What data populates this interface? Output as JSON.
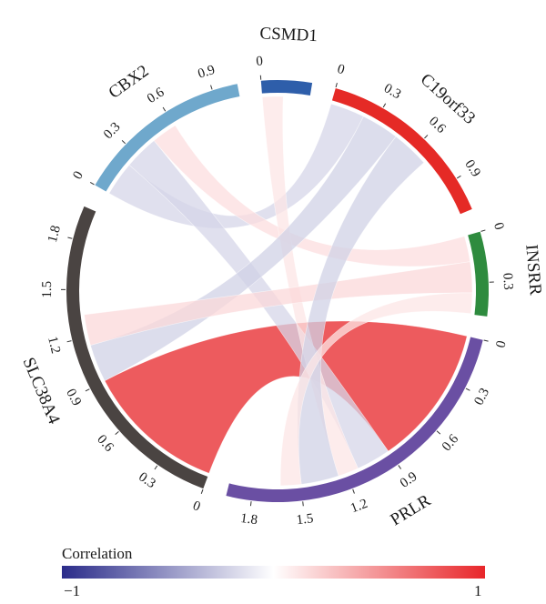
{
  "chart_data": {
    "type": "chord",
    "title": "",
    "segments": [
      {
        "name": "CSMD1",
        "color": "#2E5EAA",
        "max": 0.3,
        "ticks": [
          "0"
        ]
      },
      {
        "name": "C19orf33",
        "color": "#E52A26",
        "max": 1.1,
        "ticks": [
          "0",
          "0.3",
          "0.6",
          "0.9"
        ]
      },
      {
        "name": "INSRR",
        "color": "#2E8B3E",
        "max": 0.5,
        "ticks": [
          "0",
          "0.3"
        ]
      },
      {
        "name": "PRLR",
        "color": "#6A4FA3",
        "max": 1.95,
        "ticks": [
          "0",
          "0.3",
          "0.6",
          "0.9",
          "1.2",
          "1.5",
          "1.8"
        ]
      },
      {
        "name": "SLC38A4",
        "color": "#4A4442",
        "max": 2.0,
        "ticks": [
          "0",
          "0.3",
          "0.6",
          "0.9",
          "1.2",
          "1.5",
          "1.8"
        ]
      },
      {
        "name": "CBX2",
        "color": "#6FA8CC",
        "max": 1.05,
        "ticks": [
          "0",
          "0.3",
          "0.6",
          "0.9"
        ]
      }
    ],
    "links": [
      {
        "from": "SLC38A4",
        "to": "PRLR",
        "correlation": 0.82
      },
      {
        "from": "CBX2",
        "to": "C19orf33",
        "correlation": -0.2
      },
      {
        "from": "CBX2",
        "to": "PRLR",
        "correlation": -0.2
      },
      {
        "from": "CBX2",
        "to": "INSRR",
        "correlation": 0.15
      },
      {
        "from": "CSMD1",
        "to": "PRLR",
        "correlation": 0.12
      },
      {
        "from": "SLC38A4",
        "to": "C19orf33",
        "correlation": -0.22
      },
      {
        "from": "SLC38A4",
        "to": "INSRR",
        "correlation": 0.18
      },
      {
        "from": "PRLR",
        "to": "C19orf33",
        "correlation": -0.22
      },
      {
        "from": "PRLR",
        "to": "INSRR",
        "correlation": 0.12
      }
    ],
    "legend": {
      "title": "Correlation",
      "min_label": "−1",
      "max_label": "1",
      "min": -1,
      "max": 1,
      "colors": [
        "#2B2C8A",
        "#FFFFFF",
        "#E8262A"
      ],
      "placement": "bottom"
    }
  }
}
